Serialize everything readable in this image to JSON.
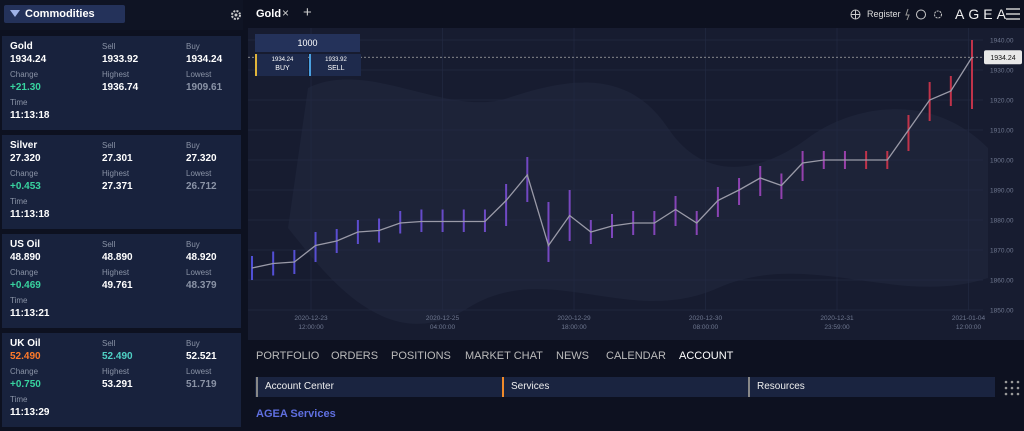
{
  "sidebar": {
    "title": "Commodities",
    "instruments": [
      {
        "name": "Gold",
        "price": "1934.24",
        "sell_label": "Sell",
        "sell": "1933.92",
        "buy_label": "Buy",
        "buy": "1934.24",
        "change_label": "Change",
        "change": "+21.30",
        "highest_label": "Highest",
        "highest": "1936.74",
        "lowest_label": "Lowest",
        "lowest": "1909.61",
        "time_label": "Time",
        "time": "11:13:18"
      },
      {
        "name": "Silver",
        "price": "27.320",
        "sell_label": "Sell",
        "sell": "27.301",
        "buy_label": "Buy",
        "buy": "27.320",
        "change_label": "Change",
        "change": "+0.453",
        "highest_label": "Highest",
        "highest": "27.371",
        "lowest_label": "Lowest",
        "lowest": "26.712",
        "time_label": "Time",
        "time": "11:13:18"
      },
      {
        "name": "US Oil",
        "price": "48.890",
        "sell_label": "Sell",
        "sell": "48.890",
        "buy_label": "Buy",
        "buy": "48.920",
        "change_label": "Change",
        "change": "+0.469",
        "highest_label": "Highest",
        "highest": "49.761",
        "lowest_label": "Lowest",
        "lowest": "48.379",
        "time_label": "Time",
        "time": "11:13:21"
      },
      {
        "name": "UK Oil",
        "price": "52.490",
        "sell_label": "Sell",
        "sell": "52.490",
        "buy_label": "Buy",
        "buy": "52.521",
        "change_label": "Change",
        "change": "+0.750",
        "highest_label": "Highest",
        "highest": "53.291",
        "lowest_label": "Lowest",
        "lowest": "51.719",
        "time_label": "Time",
        "time": "11:13:29"
      }
    ]
  },
  "header": {
    "tab": "Gold",
    "register": "Register",
    "brand": "AGEA"
  },
  "trade": {
    "amount": "1000",
    "buy_price": "1934.24",
    "buy": "BUY",
    "sell_price": "1933.92",
    "sell": "SELL"
  },
  "chart": {
    "ylim": [
      1840,
      1944
    ],
    "yticks": [
      {
        "value": 1850,
        "label": "1850.00"
      },
      {
        "value": 1860,
        "label": "1860.00"
      },
      {
        "value": 1870,
        "label": "1870.00"
      },
      {
        "value": 1880,
        "label": "1880.00"
      },
      {
        "value": 1890,
        "label": "1890.00"
      },
      {
        "value": 1900,
        "label": "1900.00"
      },
      {
        "value": 1910,
        "label": "1910.00"
      },
      {
        "value": 1920,
        "label": "1920.00"
      },
      {
        "value": 1930,
        "label": "1930.00"
      },
      {
        "value": 1940,
        "label": "1940.00"
      }
    ],
    "xticks": [
      [
        "2020-12-23",
        "12:00:00"
      ],
      [
        "2020-12-25",
        "04:00:00"
      ],
      [
        "2020-12-29",
        "18:00:00"
      ],
      [
        "2020-12-30",
        "08:00:00"
      ],
      [
        "2020-12-31",
        "23:59:00"
      ],
      [
        "2021-01-04",
        "12:00:00"
      ]
    ],
    "close": [
      1864,
      1865.5,
      1866,
      1871.5,
      1873,
      1876,
      1876.5,
      1879,
      1879.5,
      1879.5,
      1879.5,
      1879.5,
      1886.5,
      1895,
      1871.5,
      1881.5,
      1876,
      1878,
      1879,
      1879,
      1883.5,
      1879,
      1886.5,
      1890,
      1894,
      1891.5,
      1899,
      1900,
      1900,
      1900,
      1900,
      1910,
      1920,
      1923,
      1934.24
    ],
    "high": [
      1868,
      1869.5,
      1870,
      1876,
      1877,
      1880,
      1880.5,
      1883,
      1883.5,
      1883.5,
      1883.5,
      1883.5,
      1892,
      1901,
      1886,
      1890,
      1880,
      1882,
      1883,
      1883,
      1888,
      1883,
      1891,
      1894,
      1898,
      1895.5,
      1903,
      1903,
      1903,
      1903,
      1903,
      1915,
      1926,
      1928,
      1940
    ],
    "low": [
      1860,
      1861.5,
      1862,
      1866,
      1869,
      1872,
      1872.5,
      1875.5,
      1876,
      1876,
      1876,
      1876,
      1878,
      1886,
      1866,
      1873,
      1872,
      1874,
      1875,
      1875,
      1878,
      1875,
      1881,
      1885,
      1888,
      1887,
      1893,
      1897,
      1897,
      1897,
      1897,
      1903,
      1913,
      1918,
      1917
    ]
  },
  "tabs": [
    "PORTFOLIO",
    "ORDERS",
    "POSITIONS",
    "MARKET CHAT",
    "NEWS",
    "CALENDAR",
    "ACCOUNT"
  ],
  "subtabs": [
    "Account Center",
    "Services",
    "Resources"
  ],
  "section": "AGEA Services"
}
